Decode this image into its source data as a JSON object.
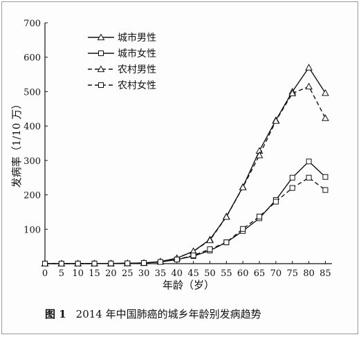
{
  "caption": {
    "label": "图 1",
    "text": "2014 年中国肺癌的城乡年龄别发病趋势"
  },
  "chart_data": {
    "type": "line",
    "title": "",
    "xlabel": "年龄（岁）",
    "ylabel": "发病率（1/10 万）",
    "xlim": [
      0,
      87
    ],
    "ylim": [
      0,
      700
    ],
    "x": [
      0,
      5,
      10,
      15,
      20,
      25,
      30,
      35,
      40,
      45,
      50,
      55,
      60,
      65,
      70,
      75,
      80,
      85
    ],
    "xticks": [
      0,
      5,
      10,
      15,
      20,
      25,
      30,
      35,
      40,
      45,
      50,
      55,
      60,
      65,
      70,
      75,
      80,
      85
    ],
    "yticks": [
      100,
      200,
      300,
      400,
      500,
      600,
      700
    ],
    "legend_position": "top-left",
    "grid": false,
    "series": [
      {
        "name": "城市男性",
        "marker": "triangle",
        "dashed": false,
        "values": [
          0.2,
          0.1,
          0.2,
          0.3,
          0.5,
          1,
          2,
          6,
          16,
          36,
          70,
          137,
          223,
          328,
          417,
          500,
          570,
          496
        ]
      },
      {
        "name": "城市女性",
        "marker": "square",
        "dashed": false,
        "values": [
          0.2,
          0.1,
          0.2,
          0.3,
          0.5,
          1,
          2,
          5,
          12,
          22,
          38,
          62,
          95,
          132,
          185,
          250,
          297,
          252
        ]
      },
      {
        "name": "农村男性",
        "marker": "triangle",
        "dashed": true,
        "values": [
          0.2,
          0.1,
          0.2,
          0.3,
          0.5,
          1,
          2,
          6,
          16,
          36,
          68,
          136,
          222,
          315,
          415,
          495,
          515,
          423
        ]
      },
      {
        "name": "农村女性",
        "marker": "square",
        "dashed": true,
        "values": [
          0.2,
          0.1,
          0.2,
          0.3,
          0.5,
          1,
          2,
          5,
          12,
          24,
          42,
          62,
          101,
          137,
          180,
          220,
          250,
          214
        ]
      }
    ]
  }
}
